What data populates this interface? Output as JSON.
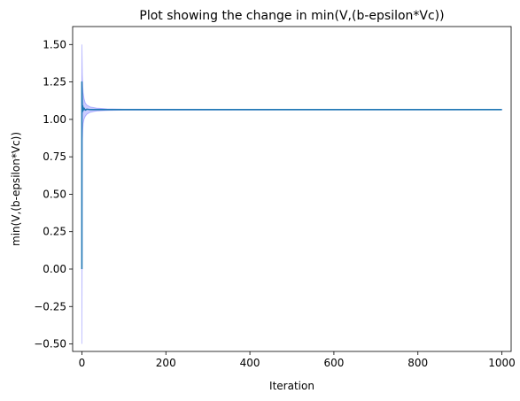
{
  "chart_data": {
    "type": "line",
    "title": "Plot showing the change in min(V,(b-epsilon*Vc))",
    "xlabel": "Iteration",
    "ylabel": "min(V,(b-epsilon*Vc))",
    "xlim": [
      -22,
      1022
    ],
    "ylim": [
      -0.55,
      1.62
    ],
    "xticks": [
      0,
      200,
      400,
      600,
      800,
      1000
    ],
    "xtick_labels": [
      "0",
      "200",
      "400",
      "600",
      "800",
      "1000"
    ],
    "yticks": [
      -0.5,
      -0.25,
      0.0,
      0.25,
      0.5,
      0.75,
      1.0,
      1.25,
      1.5
    ],
    "ytick_labels": [
      "−0.50",
      "−0.25",
      "0.00",
      "0.25",
      "0.50",
      "0.75",
      "1.00",
      "1.25",
      "1.50"
    ],
    "grid": false,
    "series": [
      {
        "color": "#1f77b4",
        "converged_value": 1.065,
        "points": [
          [
            0,
            0.0
          ],
          [
            0,
            1.25
          ],
          [
            1,
            1.05
          ],
          [
            2,
            1.09
          ],
          [
            3,
            1.06
          ],
          [
            5,
            1.075
          ],
          [
            8,
            1.062
          ],
          [
            12,
            1.068
          ],
          [
            20,
            1.065
          ],
          [
            1000,
            1.065
          ]
        ]
      }
    ],
    "band": {
      "color": "#0000ff",
      "opacity": 0.2,
      "upper": [
        [
          0,
          1.5
        ],
        [
          1,
          1.3
        ],
        [
          2,
          1.22
        ],
        [
          3,
          1.18
        ],
        [
          5,
          1.14
        ],
        [
          8,
          1.11
        ],
        [
          12,
          1.095
        ],
        [
          20,
          1.083
        ],
        [
          35,
          1.075
        ],
        [
          60,
          1.07
        ],
        [
          100,
          1.068
        ],
        [
          1000,
          1.066
        ]
      ],
      "lower": [
        [
          0,
          -0.5
        ],
        [
          1,
          0.85
        ],
        [
          2,
          0.93
        ],
        [
          3,
          0.97
        ],
        [
          5,
          1.0
        ],
        [
          8,
          1.02
        ],
        [
          12,
          1.035
        ],
        [
          20,
          1.048
        ],
        [
          35,
          1.056
        ],
        [
          60,
          1.06
        ],
        [
          100,
          1.062
        ],
        [
          1000,
          1.064
        ]
      ]
    }
  }
}
